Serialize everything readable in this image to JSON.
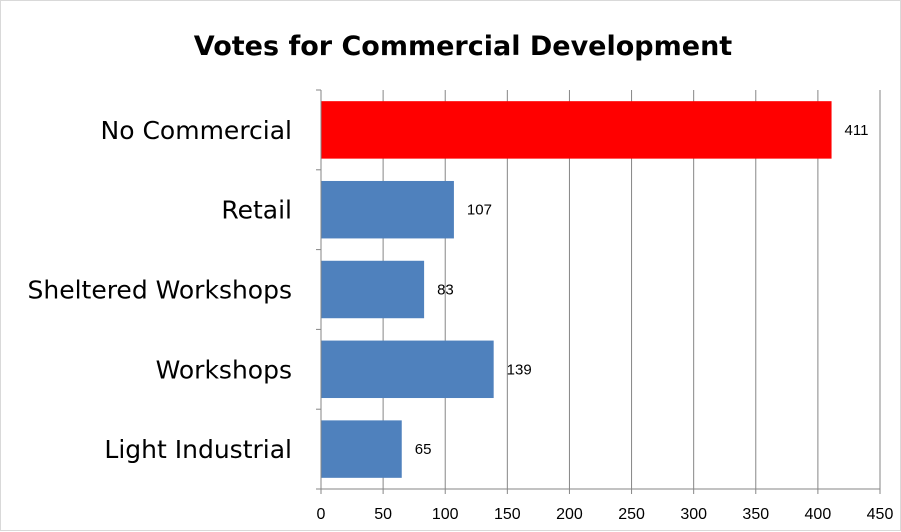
{
  "chart_data": {
    "type": "bar",
    "orientation": "horizontal",
    "title": "Votes for Commercial Development",
    "categories": [
      "No Commercial",
      "Retail",
      "Sheltered Workshops",
      "Workshops",
      "Light Industrial"
    ],
    "values": [
      411,
      107,
      83,
      139,
      65
    ],
    "data_labels": [
      "411",
      "107",
      "83",
      "139",
      "65"
    ],
    "bar_colors": [
      "#ff0000",
      "#4f81bd",
      "#4f81bd",
      "#4f81bd",
      "#4f81bd"
    ],
    "xlim": [
      0,
      450
    ],
    "x_ticks": [
      0,
      50,
      100,
      150,
      200,
      250,
      300,
      350,
      400,
      450
    ],
    "x_tick_labels": [
      "0",
      "50",
      "100",
      "150",
      "200",
      "250",
      "300",
      "350",
      "400",
      "450"
    ],
    "grid": "vertical",
    "legend": "none",
    "xlabel": "",
    "ylabel": ""
  }
}
